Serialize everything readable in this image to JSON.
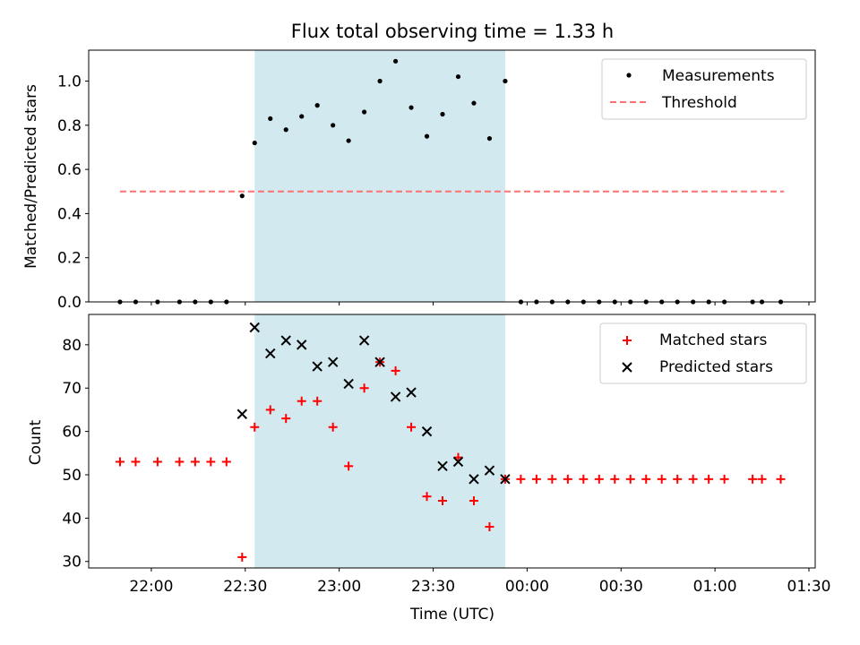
{
  "chart_data": [
    {
      "type": "scatter",
      "title": "Flux total observing time = 1.33 h",
      "ylabel": "Matched/Predicted stars",
      "xlabel": "",
      "ylim": [
        0,
        1.14
      ],
      "yticks": [
        0.0,
        0.2,
        0.4,
        0.6,
        0.8,
        1.0
      ],
      "ytick_labels": [
        "0.0",
        "0.2",
        "0.4",
        "0.6",
        "0.8",
        "1.0"
      ],
      "legend_position": "top-right",
      "highlight_span": {
        "start": "22:33",
        "end": "23:53",
        "color": "#d2e9f0"
      },
      "threshold": {
        "name": "Threshold",
        "value": 0.5,
        "x_start": "21:50",
        "x_end": "01:22",
        "color": "#ff7070",
        "style": "dashed"
      },
      "series": [
        {
          "name": "Measurements",
          "marker": "dot",
          "color": "#000000",
          "x": [
            "21:50",
            "21:55",
            "22:02",
            "22:09",
            "22:14",
            "22:19",
            "22:24",
            "22:29",
            "22:33",
            "22:38",
            "22:43",
            "22:48",
            "22:53",
            "22:58",
            "23:03",
            "23:08",
            "23:13",
            "23:18",
            "23:23",
            "23:28",
            "23:33",
            "23:38",
            "23:43",
            "23:48",
            "23:53",
            "23:58",
            "00:03",
            "00:08",
            "00:13",
            "00:18",
            "00:23",
            "00:28",
            "00:33",
            "00:38",
            "00:43",
            "00:48",
            "00:53",
            "00:58",
            "01:03",
            "01:12",
            "01:15",
            "01:21"
          ],
          "y": [
            0,
            0,
            0,
            0,
            0,
            0,
            0,
            0.48,
            0.72,
            0.83,
            0.78,
            0.84,
            0.89,
            0.8,
            0.73,
            0.86,
            1.0,
            1.09,
            0.88,
            0.75,
            0.85,
            1.02,
            0.9,
            0.74,
            1.0,
            0,
            0,
            0,
            0,
            0,
            0,
            0,
            0,
            0,
            0,
            0,
            0,
            0,
            0,
            0,
            0,
            0
          ]
        }
      ]
    },
    {
      "type": "scatter",
      "title": "",
      "xlabel": "Time (UTC)",
      "ylabel": "Count",
      "ylim": [
        28.5,
        87
      ],
      "yticks": [
        30,
        40,
        50,
        60,
        70,
        80
      ],
      "ytick_labels": [
        "30",
        "40",
        "50",
        "60",
        "70",
        "80"
      ],
      "xrange": [
        "21:40",
        "01:32"
      ],
      "xticks": [
        "22:00",
        "22:30",
        "23:00",
        "23:30",
        "00:00",
        "00:30",
        "01:00",
        "01:30"
      ],
      "legend_position": "top-right",
      "highlight_span": {
        "start": "22:33",
        "end": "23:53",
        "color": "#d2e9f0"
      },
      "series": [
        {
          "name": "Matched stars",
          "marker": "plus",
          "color": "#ff0000",
          "x": [
            "21:50",
            "21:55",
            "22:02",
            "22:09",
            "22:14",
            "22:19",
            "22:24",
            "22:29",
            "22:33",
            "22:38",
            "22:43",
            "22:48",
            "22:53",
            "22:58",
            "23:03",
            "23:08",
            "23:13",
            "23:18",
            "23:23",
            "23:28",
            "23:33",
            "23:38",
            "23:43",
            "23:48",
            "23:53",
            "23:58",
            "00:03",
            "00:08",
            "00:13",
            "00:18",
            "00:23",
            "00:28",
            "00:33",
            "00:38",
            "00:43",
            "00:48",
            "00:53",
            "00:58",
            "01:03",
            "01:12",
            "01:15",
            "01:21"
          ],
          "y": [
            53,
            53,
            53,
            53,
            53,
            53,
            53,
            31,
            61,
            65,
            63,
            67,
            67,
            61,
            52,
            70,
            76,
            74,
            61,
            45,
            44,
            54,
            44,
            38,
            49,
            49,
            49,
            49,
            49,
            49,
            49,
            49,
            49,
            49,
            49,
            49,
            49,
            49,
            49,
            49,
            49,
            49
          ]
        },
        {
          "name": "Predicted stars",
          "marker": "x",
          "color": "#000000",
          "x": [
            "22:29",
            "22:33",
            "22:38",
            "22:43",
            "22:48",
            "22:53",
            "22:58",
            "23:03",
            "23:08",
            "23:13",
            "23:18",
            "23:23",
            "23:28",
            "23:33",
            "23:38",
            "23:43",
            "23:48",
            "23:53"
          ],
          "y": [
            64,
            84,
            78,
            81,
            80,
            75,
            76,
            71,
            81,
            76,
            68,
            69,
            60,
            52,
            53,
            49,
            51,
            49
          ]
        }
      ]
    }
  ]
}
